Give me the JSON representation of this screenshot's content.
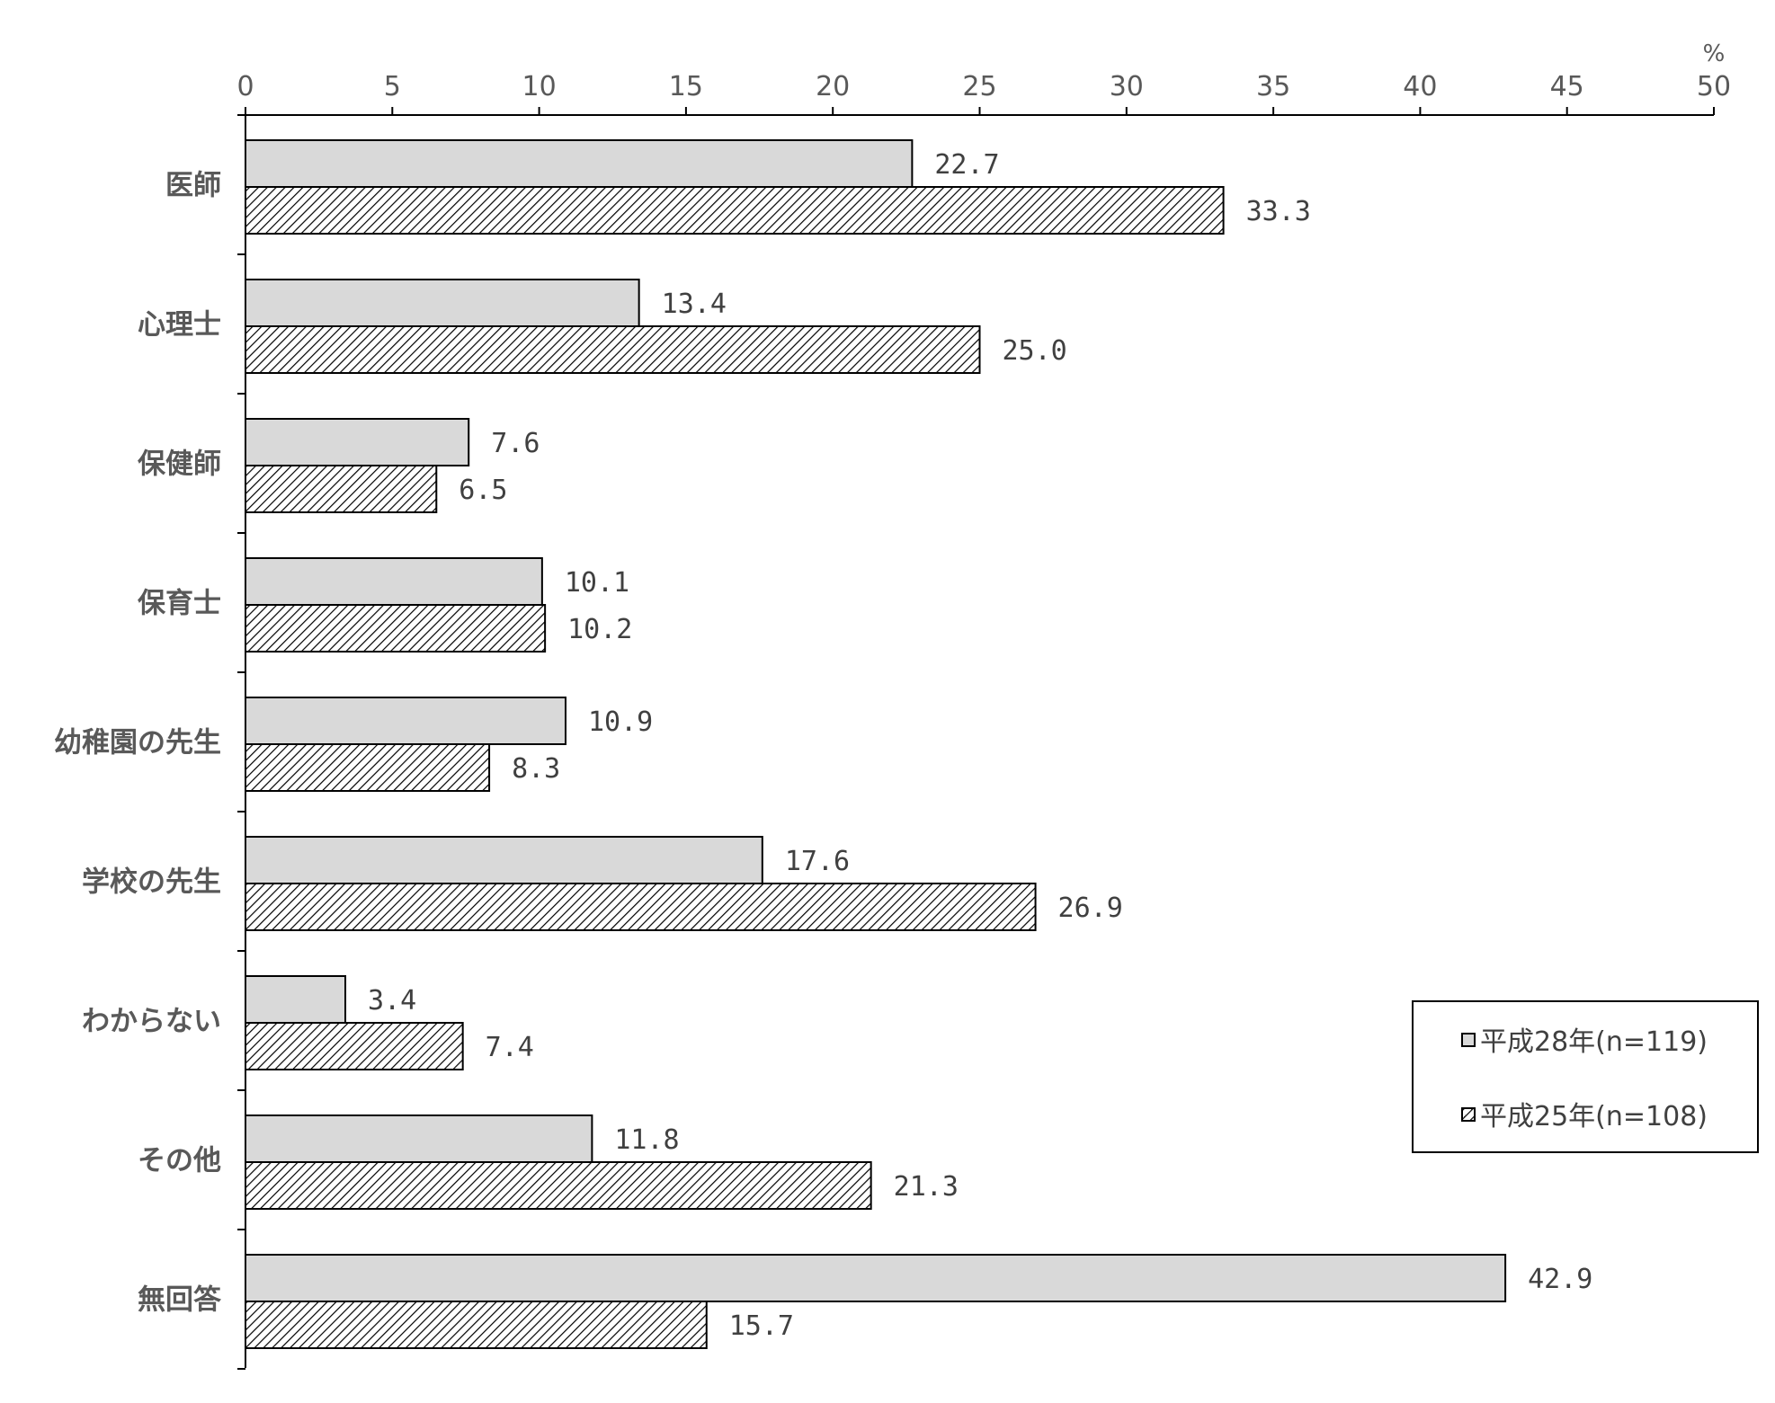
{
  "chart_data": {
    "type": "bar",
    "orientation": "horizontal",
    "unit": "%",
    "categories": [
      "医師",
      "心理士",
      "保健師",
      "保育士",
      "幼稚園の先生",
      "学校の先生",
      "わからない",
      "その他",
      "無回答"
    ],
    "series": [
      {
        "name": "平成28年(n=119)",
        "values": [
          22.7,
          13.4,
          7.6,
          10.1,
          10.9,
          17.6,
          3.4,
          11.8,
          42.9
        ],
        "labels": [
          "22.7",
          "13.4",
          "7.6",
          "10.1",
          "10.9",
          "17.6",
          "3.4",
          "11.8",
          "42.9"
        ],
        "fill": "#d9d9d9",
        "pattern": "solid"
      },
      {
        "name": "平成25年(n=108)",
        "values": [
          33.3,
          25.0,
          6.5,
          10.2,
          8.3,
          26.9,
          7.4,
          21.3,
          15.7
        ],
        "labels": [
          "33.3",
          "25.0",
          "6.5",
          "10.2",
          "8.3",
          "26.9",
          "7.4",
          "21.3",
          "15.7"
        ],
        "fill": "#ffffff",
        "pattern": "diagonal-hatch"
      }
    ],
    "xlim": [
      0,
      50
    ],
    "xticks": [
      0,
      5,
      10,
      15,
      20,
      25,
      30,
      35,
      40,
      45,
      50
    ],
    "xtick_labels": [
      "0",
      "5",
      "10",
      "15",
      "20",
      "25",
      "30",
      "35",
      "40",
      "45",
      "50"
    ],
    "axis_position": "top",
    "grid": false,
    "legend_position": "bottom-right"
  },
  "colors": {
    "bar_outline": "#000000",
    "axis": "#000000",
    "hatch": "#000000"
  }
}
